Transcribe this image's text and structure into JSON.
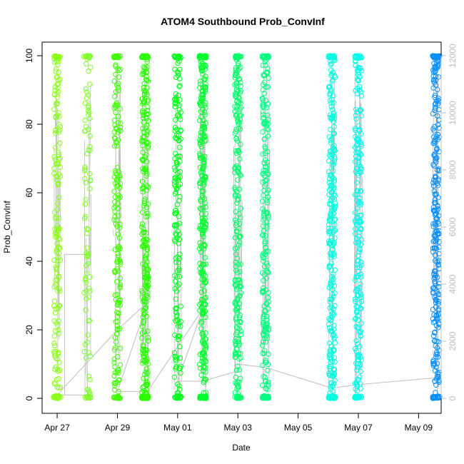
{
  "chart_data": {
    "type": "scatter",
    "title": "ATOM4 Southbound Prob_ConvInf",
    "xlabel": "Date",
    "ylabel": "Prob_ConvInf",
    "x_ticks": [
      "Apr 27",
      "Apr 29",
      "May 01",
      "May 03",
      "May 05",
      "May 07",
      "May 09"
    ],
    "x_tick_dates": [
      "2016-04-27",
      "2016-04-29",
      "2016-05-01",
      "2016-05-03",
      "2016-05-05",
      "2016-05-07",
      "2016-05-09"
    ],
    "xlim": [
      "2016-04-26 12:00",
      "2016-05-09 18:00"
    ],
    "ylim": [
      0,
      100
    ],
    "y_ticks": [
      0,
      20,
      40,
      60,
      80,
      100
    ],
    "y2_ticks": [
      0,
      2000,
      4000,
      6000,
      8000,
      10000,
      12000
    ],
    "y2lim": [
      0,
      12000
    ],
    "point_color_ramp": [
      "#7fff00",
      "#00ff00",
      "#00ff7f",
      "#00ffff",
      "#0080ff"
    ],
    "line_color": "#bebebe",
    "grid": false,
    "clusters": [
      {
        "date": "2016-04-27 00:00",
        "density": 0.55,
        "color": "#8cff1a"
      },
      {
        "date": "2016-04-28 00:00",
        "density": 0.2,
        "color": "#80ff2a"
      },
      {
        "date": "2016-04-29 00:00",
        "density": 0.55,
        "color": "#40ff00"
      },
      {
        "date": "2016-04-29 22:00",
        "density": 1.0,
        "color": "#2aff00"
      },
      {
        "date": "2016-05-01 00:00",
        "density": 0.6,
        "color": "#00ff1a"
      },
      {
        "date": "2016-05-01 20:00",
        "density": 1.0,
        "color": "#00ff2e"
      },
      {
        "date": "2016-05-03 00:00",
        "density": 0.85,
        "color": "#00ff6a"
      },
      {
        "date": "2016-05-03 22:00",
        "density": 0.75,
        "color": "#00ff80"
      },
      {
        "date": "2016-05-06 03:00",
        "density": 1.0,
        "color": "#00ffe0"
      },
      {
        "date": "2016-05-07 00:00",
        "density": 0.85,
        "color": "#00ffea"
      },
      {
        "date": "2016-05-09 14:00",
        "density": 1.0,
        "color": "#0a90ff"
      }
    ],
    "connecting_line": [
      {
        "date": "2016-04-27 06:00",
        "value": 1
      },
      {
        "date": "2016-04-27 06:00",
        "value": 42
      },
      {
        "date": "2016-04-28 00:00",
        "value": 42
      },
      {
        "date": "2016-04-28 00:00",
        "value": 1
      },
      {
        "date": "2016-04-27 00:00",
        "value": 1
      },
      {
        "date": "2016-04-29 00:00",
        "value": 20
      },
      {
        "date": "2016-04-30 00:00",
        "value": 28
      },
      {
        "date": "2016-04-29 00:00",
        "value": 2
      },
      {
        "date": "2016-04-30 00:00",
        "value": 2
      },
      {
        "date": "2016-05-01 20:00",
        "value": 26
      },
      {
        "date": "2016-05-01 00:00",
        "value": 5
      },
      {
        "date": "2016-05-01 20:00",
        "value": 5
      },
      {
        "date": "2016-05-03 00:00",
        "value": 8
      },
      {
        "date": "2016-05-03 00:00",
        "value": 10
      },
      {
        "date": "2016-05-03 22:00",
        "value": 9
      },
      {
        "date": "2016-05-06 03:00",
        "value": 3
      },
      {
        "date": "2016-05-07 00:00",
        "value": 4
      },
      {
        "date": "2016-05-09 14:00",
        "value": 6
      }
    ]
  }
}
